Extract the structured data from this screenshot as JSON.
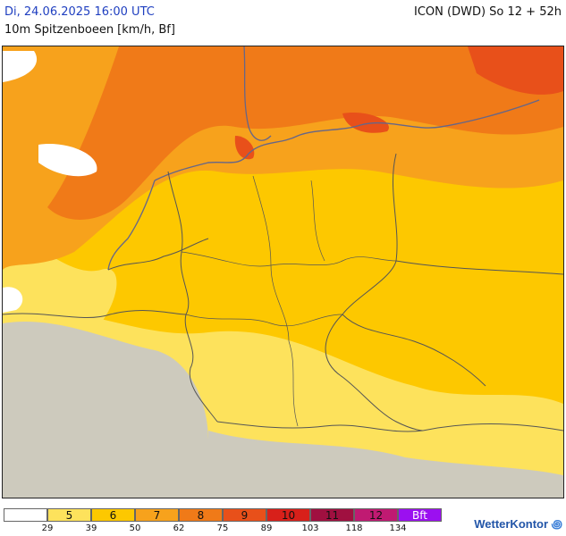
{
  "header": {
    "valid_time": "Di, 24.06.2025 16:00 UTC",
    "model_run": "ICON (DWD) So 12 + 52h",
    "parameter": "10m Spitzenboeen [km/h, Bf]"
  },
  "legend": {
    "classes": [
      {
        "label": "",
        "color": "#ffffff"
      },
      {
        "label": "5",
        "color": "#fde25c"
      },
      {
        "label": "6",
        "color": "#fdc800"
      },
      {
        "label": "7",
        "color": "#f7a21c"
      },
      {
        "label": "8",
        "color": "#f07a18"
      },
      {
        "label": "9",
        "color": "#e8501a"
      },
      {
        "label": "10",
        "color": "#d8201a"
      },
      {
        "label": "11",
        "color": "#a01040"
      },
      {
        "label": "12",
        "color": "#c01a72"
      },
      {
        "label": "Bft",
        "color": "#9b10f0"
      }
    ],
    "ticks": [
      "29",
      "39",
      "50",
      "62",
      "75",
      "89",
      "103",
      "118",
      "134"
    ]
  },
  "logo": {
    "text": "WetterKontor"
  },
  "map_colors": {
    "land_grey": "#c8c8c8",
    "border": "#555555",
    "coast": "#666688"
  }
}
